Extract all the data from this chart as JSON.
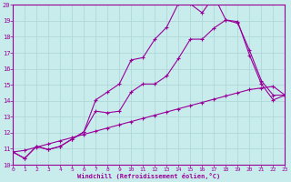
{
  "bg_color": "#c8ecec",
  "line_color": "#990099",
  "grid_color": "#b0d8d8",
  "xlabel": "Windchill (Refroidissement éolien,°C)",
  "xlim": [
    0,
    23
  ],
  "ylim": [
    10,
    20
  ],
  "yticks": [
    10,
    11,
    12,
    13,
    14,
    15,
    16,
    17,
    18,
    19,
    20
  ],
  "xticks": [
    0,
    1,
    2,
    3,
    4,
    5,
    6,
    7,
    8,
    9,
    10,
    11,
    12,
    13,
    14,
    15,
    16,
    17,
    18,
    19,
    20,
    21,
    22,
    23
  ],
  "line1_x": [
    0,
    1,
    2,
    3,
    4,
    5,
    6,
    7,
    8,
    9,
    10,
    11,
    12,
    13,
    14,
    15,
    16,
    17,
    18,
    19,
    20,
    21,
    22,
    23
  ],
  "line1_y": [
    10.8,
    10.4,
    11.15,
    10.95,
    11.15,
    11.6,
    12.05,
    14.05,
    14.55,
    15.05,
    16.55,
    16.7,
    17.85,
    18.6,
    20.1,
    20.05,
    19.5,
    20.55,
    19.05,
    18.95,
    16.85,
    15.05,
    14.05,
    14.35
  ],
  "line2_x": [
    0,
    1,
    2,
    3,
    4,
    5,
    6,
    7,
    8,
    9,
    10,
    11,
    12,
    13,
    14,
    15,
    16,
    17,
    18,
    19,
    20,
    21,
    22,
    23
  ],
  "line2_y": [
    10.8,
    10.4,
    11.15,
    10.95,
    11.15,
    11.6,
    12.05,
    13.35,
    13.25,
    13.35,
    14.55,
    15.05,
    15.05,
    15.55,
    16.65,
    17.85,
    17.85,
    18.55,
    19.05,
    18.85,
    17.15,
    15.25,
    14.35,
    14.35
  ],
  "line3_x": [
    0,
    1,
    2,
    3,
    4,
    5,
    6,
    7,
    8,
    9,
    10,
    11,
    12,
    13,
    14,
    15,
    16,
    17,
    18,
    19,
    20,
    21,
    22,
    23
  ],
  "line3_y": [
    10.8,
    10.9,
    11.1,
    11.3,
    11.5,
    11.7,
    11.9,
    12.1,
    12.3,
    12.5,
    12.7,
    12.9,
    13.1,
    13.3,
    13.5,
    13.7,
    13.9,
    14.1,
    14.3,
    14.5,
    14.7,
    14.8,
    14.9,
    14.35
  ]
}
